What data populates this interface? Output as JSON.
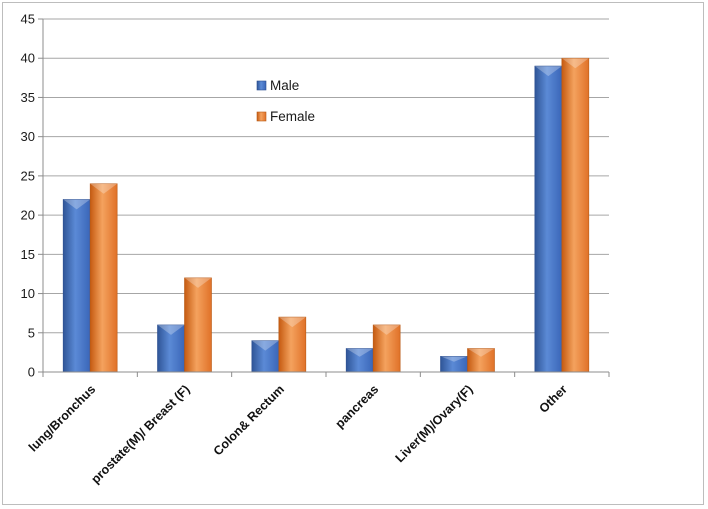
{
  "chart_data": {
    "type": "bar",
    "title": "",
    "xlabel": "",
    "ylabel": "",
    "ylim": [
      0,
      45
    ],
    "yticks": [
      0,
      5,
      10,
      15,
      20,
      25,
      30,
      35,
      40,
      45
    ],
    "grid": true,
    "legend_position": "top-center",
    "categories": [
      "lung/Bronchus",
      "prostate(M)/ Breast (F)",
      "Colon& Rectum",
      "pancreas",
      "Liver(M)/Ovary(F)",
      "Other"
    ],
    "series": [
      {
        "name": "Male",
        "color": "#4472c4",
        "values": [
          22,
          6,
          4,
          3,
          2,
          39
        ]
      },
      {
        "name": "Female",
        "color": "#ed7d31",
        "values": [
          24,
          12,
          7,
          6,
          3,
          40
        ]
      }
    ]
  }
}
